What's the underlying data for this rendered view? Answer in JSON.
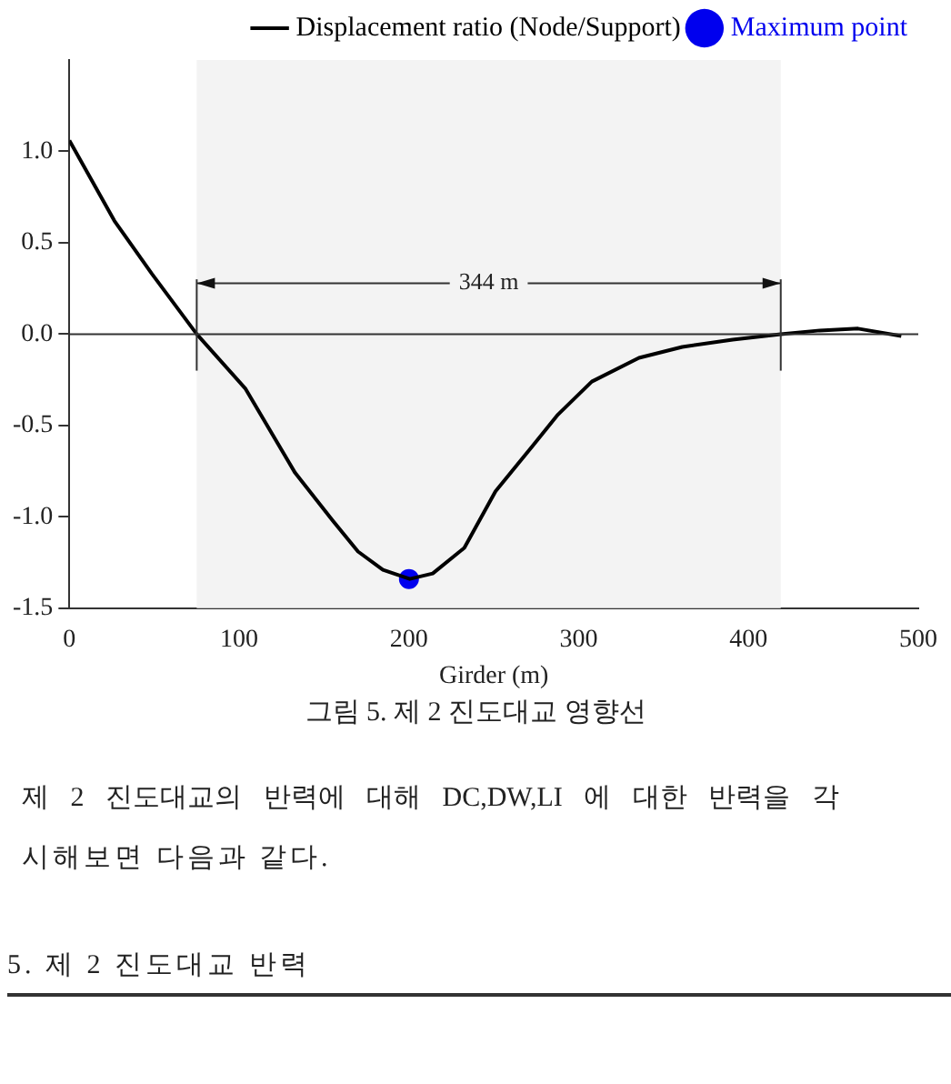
{
  "chart_data": {
    "type": "line",
    "title": "그림 5. 제 2 진도대교 영향선",
    "xlabel": "Girder (m)",
    "xlim": [
      0,
      500
    ],
    "xticks": [
      0,
      100,
      200,
      300,
      400,
      500
    ],
    "ylim": [
      -1.5,
      1.5
    ],
    "yticks": [
      -1.5,
      {
        "value": -1,
        "label": "-1.0"
      },
      -0.5,
      {
        "value": 0,
        "label": "0.0"
      },
      0.5,
      {
        "value": 1,
        "label": "1.0"
      }
    ],
    "grid": false,
    "legend": "top right",
    "series": [
      {
        "name": "Displacement ratio (Node/Support)",
        "color": "#000000",
        "marker": "none",
        "x": [
          0,
          26.5,
          48.6,
          75,
          103.8,
          133,
          155,
          170,
          184.7,
          200.5,
          214,
          232.6,
          251,
          273,
          287.8,
          307.7,
          335.5,
          361,
          390.7,
          419,
          442,
          464.5,
          490
        ],
        "values": [
          1.06,
          0.62,
          0.33,
          0,
          -0.3,
          -0.76,
          -1.02,
          -1.19,
          -1.29,
          -1.34,
          -1.31,
          -1.17,
          -0.86,
          -0.61,
          -0.44,
          -0.26,
          -0.13,
          -0.07,
          -0.03,
          0,
          0.02,
          0.03,
          -0.01
        ]
      },
      {
        "name": "Maximum point",
        "color": "#0000ee",
        "type": "scatter",
        "marker": "circle",
        "x": [
          200
        ],
        "values": [
          -1.34
        ]
      }
    ],
    "ref_lines": [
      {
        "axis": "y",
        "value": 0
      },
      {
        "axis": "x",
        "value": 75
      },
      {
        "axis": "x",
        "value": 419
      }
    ],
    "bands": [
      {
        "axis": "x",
        "from": 75,
        "to": 419,
        "label": "344 m",
        "color": "#f3f3f3"
      }
    ],
    "annotations": [
      "제 2 진도대교의 반력에 대해 DC,DW,LI 에 대한 반력을 각",
      "시해보면 다음과 같다.",
      "5. 제 2 진도대교 반력"
    ]
  }
}
